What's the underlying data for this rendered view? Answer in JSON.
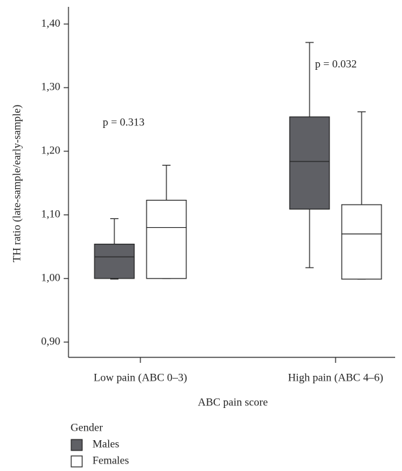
{
  "chart_data": {
    "type": "box",
    "x_label": "ABC pain score",
    "y_label": "TH ratio (late-sample/early-sample)",
    "categories": [
      "Low pain (ABC 0–3)",
      "High pain (ABC 4–6)"
    ],
    "ylim": [
      0.876,
      1.427
    ],
    "yticks": [
      {
        "value": 0.9,
        "label": "0,90"
      },
      {
        "value": 1.0,
        "label": "1,00"
      },
      {
        "value": 1.1,
        "label": "1,10"
      },
      {
        "value": 1.2,
        "label": "1,20"
      },
      {
        "value": 1.3,
        "label": "1,30"
      },
      {
        "value": 1.4,
        "label": "1,40"
      }
    ],
    "legend_title": "Gender",
    "series": [
      {
        "name": "Males",
        "color": "#5f6065",
        "values": [
          {
            "min": 0.999,
            "q1": 1.0,
            "median": 1.034,
            "q3": 1.054,
            "max": 1.094
          },
          {
            "min": 1.017,
            "q1": 1.109,
            "median": 1.184,
            "q3": 1.254,
            "max": 1.371
          }
        ]
      },
      {
        "name": "Females",
        "color": "#ffffff",
        "values": [
          {
            "min": 1.0,
            "q1": 1.0,
            "median": 1.08,
            "q3": 1.123,
            "max": 1.178
          },
          {
            "min": 0.999,
            "q1": 0.999,
            "median": 1.07,
            "q3": 1.116,
            "max": 1.262
          }
        ]
      }
    ],
    "annotations": [
      "p = 0.313",
      "p = 0.032"
    ]
  }
}
